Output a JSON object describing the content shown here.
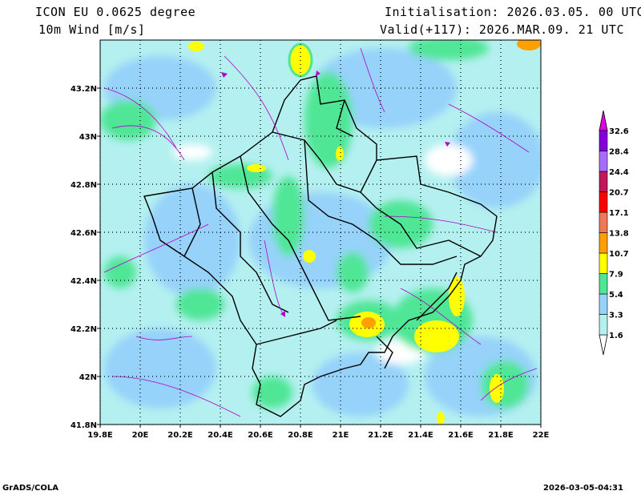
{
  "header": {
    "model": "ICON EU 0.0625 degree",
    "variable": "10m Wind [m/s]",
    "initialisation": "Initialisation: 2026.03.05. 00 UTC",
    "valid": "Valid(+117): 2026.MAR.09. 21 UTC"
  },
  "map": {
    "lon_range": [
      19.8,
      22.0
    ],
    "lat_range": [
      41.8,
      43.4
    ],
    "lon_labels": [
      "19.8E",
      "20E",
      "20.2E",
      "20.4E",
      "20.6E",
      "20.8E",
      "21E",
      "21.2E",
      "21.4E",
      "21.6E",
      "21.8E",
      "22E"
    ],
    "lon_values": [
      19.8,
      20.0,
      20.2,
      20.4,
      20.6,
      20.8,
      21.0,
      21.2,
      21.4,
      21.6,
      21.8,
      22.0
    ],
    "lat_labels": [
      "41.8N",
      "42N",
      "42.2N",
      "42.4N",
      "42.6N",
      "42.8N",
      "43N",
      "43.2N"
    ],
    "lat_values": [
      41.8,
      42.0,
      42.2,
      42.4,
      42.6,
      42.8,
      43.0,
      43.2
    ]
  },
  "colorbar": {
    "labels": [
      "1.6",
      "3.3",
      "5.4",
      "7.9",
      "10.7",
      "13.8",
      "17.1",
      "20.7",
      "24.4",
      "28.4",
      "32.6"
    ],
    "colors": [
      "#ffffff",
      "#b4f0f0",
      "#96d2fa",
      "#50e696",
      "#ffff00",
      "#ffa000",
      "#f0785a",
      "#ff0000",
      "#c0185a",
      "#a86cfa",
      "#8200dc",
      "#e600e6"
    ]
  },
  "footer": {
    "left": "GrADS/COLA",
    "right": "2026-03-05-04:31"
  }
}
